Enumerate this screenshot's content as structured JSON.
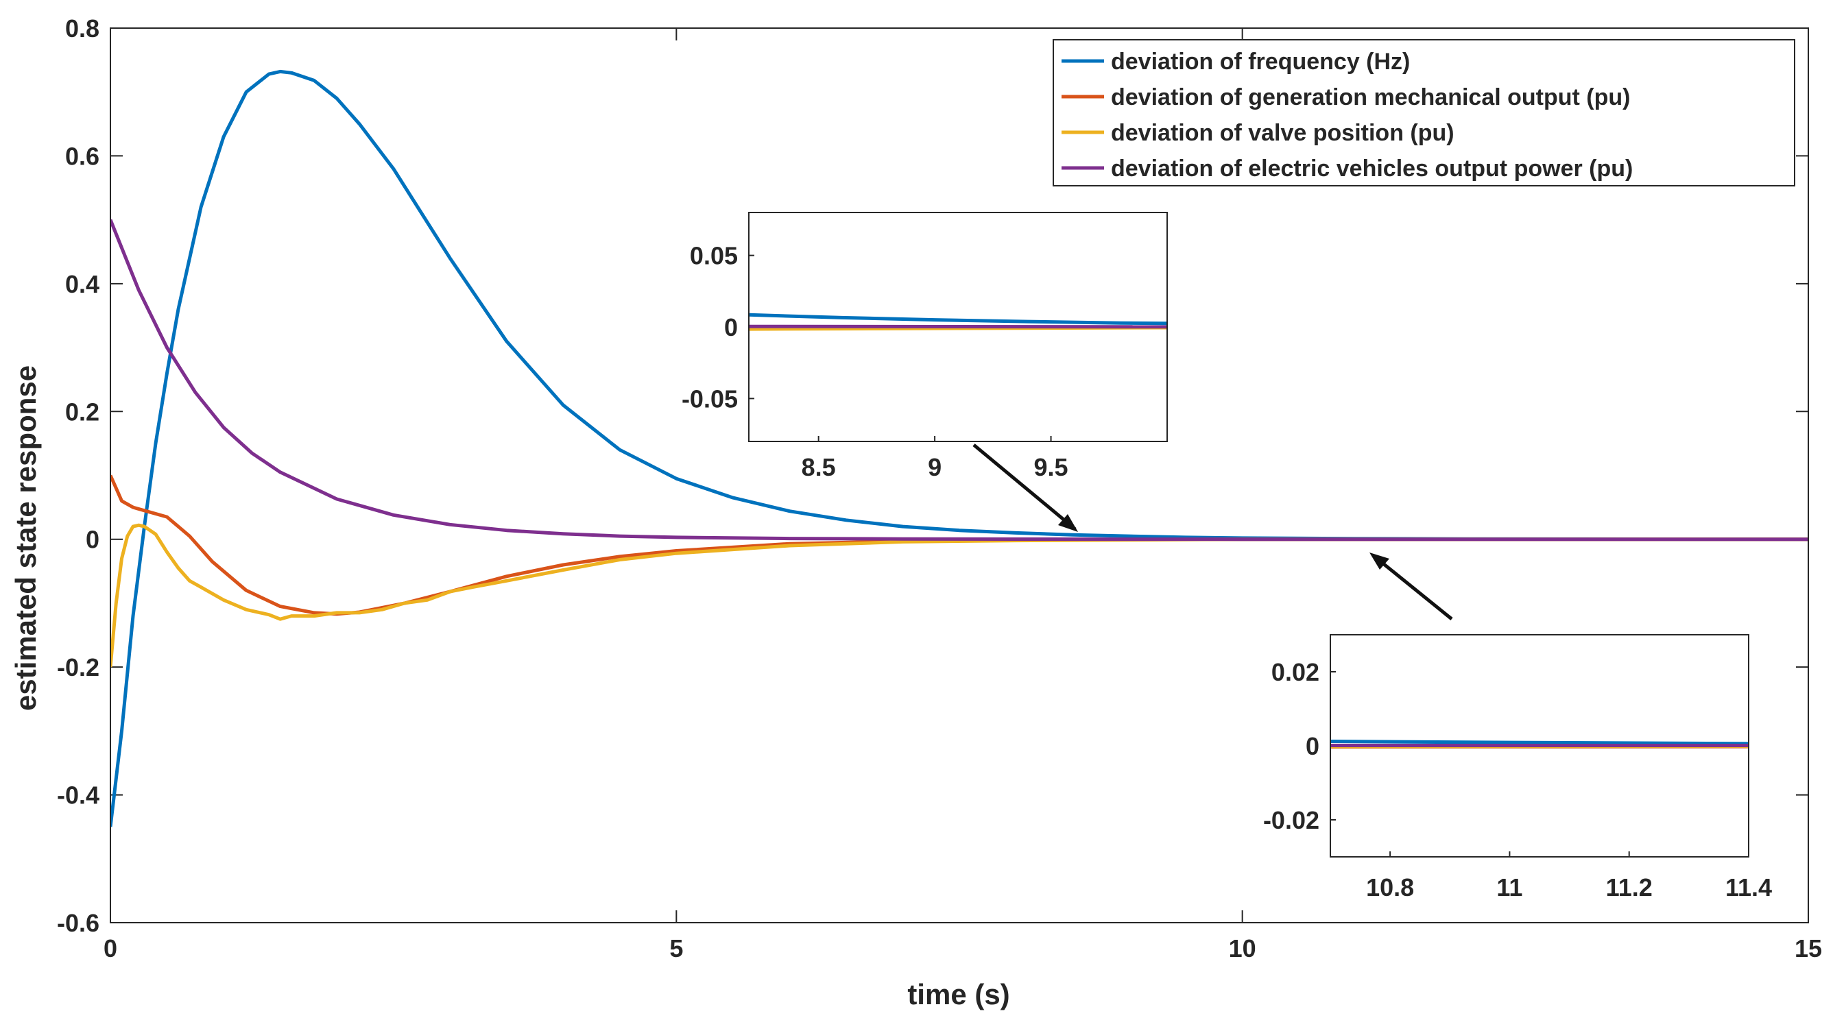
{
  "chart_data": [
    {
      "type": "line",
      "title": "",
      "xlabel": "time (s)",
      "ylabel": "estimated state response",
      "xlim": [
        0,
        15
      ],
      "ylim": [
        -0.6,
        0.8
      ],
      "xticks": [
        0,
        5,
        10,
        15
      ],
      "xtick_labels": [
        "0",
        "5",
        "10",
        "15"
      ],
      "yticks": [
        -0.6,
        -0.4,
        -0.2,
        0,
        0.2,
        0.4,
        0.6,
        0.8
      ],
      "ytick_labels": [
        "-0.6",
        "-0.4",
        "-0.2",
        "0",
        "0.2",
        "0.4",
        "0.6",
        "0.8"
      ],
      "grid": false,
      "legend_position": "top-right",
      "series": [
        {
          "name": "deviation of frequency (Hz)",
          "color": "#0072BD",
          "x": [
            0,
            0.1,
            0.2,
            0.3,
            0.4,
            0.5,
            0.6,
            0.8,
            1.0,
            1.2,
            1.4,
            1.5,
            1.6,
            1.8,
            2.0,
            2.2,
            2.5,
            3.0,
            3.5,
            4.0,
            4.5,
            5.0,
            5.5,
            6.0,
            6.5,
            7.0,
            7.5,
            8.0,
            8.5,
            9.0,
            9.5,
            10.0,
            11.0,
            12.0,
            13.0,
            14.0,
            15.0
          ],
          "y": [
            -0.45,
            -0.3,
            -0.12,
            0.02,
            0.15,
            0.26,
            0.36,
            0.52,
            0.63,
            0.7,
            0.728,
            0.732,
            0.73,
            0.718,
            0.69,
            0.65,
            0.58,
            0.44,
            0.31,
            0.21,
            0.14,
            0.095,
            0.065,
            0.044,
            0.03,
            0.02,
            0.014,
            0.01,
            0.007,
            0.005,
            0.003,
            0.002,
            0.001,
            0.0005,
            0.0003,
            0.0001,
            0
          ]
        },
        {
          "name": "deviation of generation mechanical output (pu)",
          "color": "#D95319",
          "x": [
            0,
            0.05,
            0.1,
            0.2,
            0.3,
            0.5,
            0.7,
            0.9,
            1.2,
            1.5,
            1.8,
            2.0,
            2.2,
            2.6,
            3.0,
            3.5,
            4.0,
            4.5,
            5.0,
            6.0,
            7.0,
            8.0,
            9.0,
            10.0,
            12.0,
            15.0
          ],
          "y": [
            0.1,
            0.08,
            0.06,
            0.05,
            0.045,
            0.035,
            0.005,
            -0.035,
            -0.08,
            -0.105,
            -0.115,
            -0.117,
            -0.114,
            -0.1,
            -0.082,
            -0.058,
            -0.04,
            -0.027,
            -0.018,
            -0.007,
            -0.003,
            -0.001,
            -0.0005,
            0,
            0,
            0
          ]
        },
        {
          "name": "deviation of valve position (pu)",
          "color": "#EDB120",
          "x": [
            0,
            0.05,
            0.1,
            0.15,
            0.2,
            0.25,
            0.3,
            0.4,
            0.5,
            0.6,
            0.7,
            0.8,
            1.0,
            1.2,
            1.4,
            1.5,
            1.6,
            1.8,
            2.0,
            2.2,
            2.4,
            2.6,
            2.8,
            3.0,
            3.2,
            3.5,
            4.0,
            4.5,
            5.0,
            6.0,
            7.0,
            8.0,
            9.0,
            10.0,
            12.0,
            15.0
          ],
          "y": [
            -0.2,
            -0.1,
            -0.03,
            0.005,
            0.02,
            0.022,
            0.02,
            0.008,
            -0.02,
            -0.045,
            -0.065,
            -0.075,
            -0.095,
            -0.11,
            -0.118,
            -0.125,
            -0.12,
            -0.12,
            -0.115,
            -0.115,
            -0.11,
            -0.1,
            -0.095,
            -0.082,
            -0.075,
            -0.065,
            -0.048,
            -0.032,
            -0.022,
            -0.01,
            -0.004,
            -0.002,
            -0.001,
            0,
            0,
            0
          ]
        },
        {
          "name": "deviation of electric vehicles output power (pu)",
          "color": "#7E2F8E",
          "x": [
            0,
            0.25,
            0.5,
            0.75,
            1.0,
            1.25,
            1.5,
            2.0,
            2.5,
            3.0,
            3.5,
            4.0,
            4.5,
            5.0,
            6.0,
            7.0,
            8.0,
            9.0,
            10.0,
            12.0,
            15.0
          ],
          "y": [
            0.5,
            0.39,
            0.3,
            0.23,
            0.175,
            0.135,
            0.105,
            0.063,
            0.038,
            0.023,
            0.014,
            0.0085,
            0.005,
            0.003,
            0.0012,
            0.0005,
            0.0002,
            0.0001,
            0,
            0,
            0
          ]
        }
      ]
    },
    {
      "type": "line",
      "title": "",
      "xlim": [
        8.2,
        10.0
      ],
      "ylim": [
        -0.08,
        0.08
      ],
      "xticks": [
        8.5,
        9,
        9.5
      ],
      "xtick_labels": [
        "8.5",
        "9",
        "9.5"
      ],
      "yticks": [
        -0.05,
        0,
        0.05
      ],
      "ytick_labels": [
        "-0.05",
        "0",
        "0.05"
      ],
      "series": [
        {
          "color": "#0072BD",
          "x": [
            8.2,
            8.6,
            9.0,
            9.4,
            9.8,
            10.0
          ],
          "y": [
            0.0085,
            0.0065,
            0.005,
            0.0038,
            0.0028,
            0.0025
          ]
        },
        {
          "color": "#D95319",
          "x": [
            8.2,
            10.0
          ],
          "y": [
            -0.0008,
            -0.0003
          ]
        },
        {
          "color": "#EDB120",
          "x": [
            8.2,
            10.0
          ],
          "y": [
            -0.0015,
            -0.0005
          ]
        },
        {
          "color": "#7E2F8E",
          "x": [
            8.2,
            10.0
          ],
          "y": [
            0.0004,
            0.0001
          ]
        }
      ]
    },
    {
      "type": "line",
      "title": "",
      "xlim": [
        10.7,
        11.4
      ],
      "ylim": [
        -0.03,
        0.03
      ],
      "xticks": [
        10.8,
        11,
        11.2,
        11.4
      ],
      "xtick_labels": [
        "10.8",
        "11",
        "11.2",
        "11.4"
      ],
      "yticks": [
        -0.02,
        0,
        0.02
      ],
      "ytick_labels": [
        "-0.02",
        "0",
        "0.02"
      ],
      "series": [
        {
          "color": "#0072BD",
          "x": [
            10.7,
            11.0,
            11.4
          ],
          "y": [
            0.0012,
            0.0009,
            0.0006
          ]
        },
        {
          "color": "#D95319",
          "x": [
            10.7,
            11.4
          ],
          "y": [
            -0.0003,
            -0.0002
          ]
        },
        {
          "color": "#EDB120",
          "x": [
            10.7,
            11.4
          ],
          "y": [
            -0.0002,
            -0.0001
          ]
        },
        {
          "color": "#7E2F8E",
          "x": [
            10.7,
            11.4
          ],
          "y": [
            0.0001,
            0.0001
          ]
        }
      ]
    }
  ]
}
